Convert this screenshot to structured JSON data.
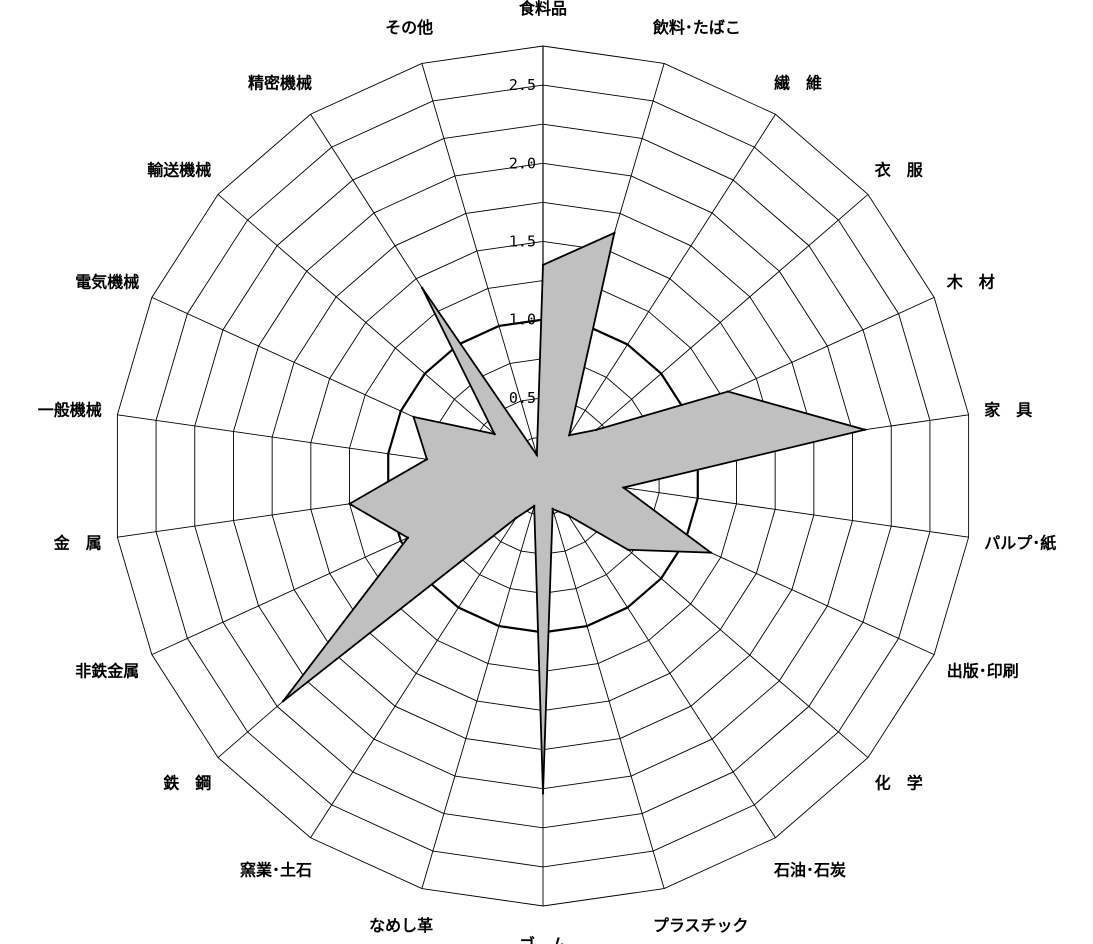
{
  "chart_data": {
    "type": "radar",
    "categories": [
      "食料品",
      "飲料･たばこ",
      "繊　維",
      "衣　服",
      "木　材",
      "家　具",
      "パルプ･紙",
      "出版･印刷",
      "化　学",
      "石油･石炭",
      "プラスチック",
      "ゴ　ム",
      "なめし革",
      "窯業･土石",
      "鉄　鋼",
      "非鉄金属",
      "金　属",
      "一般機械",
      "電気機械",
      "輸送機械",
      "精密機械",
      "その他"
    ],
    "ticks": [
      "0.5",
      "1.0",
      "1.5",
      "2.0",
      "2.5"
    ],
    "tick_values": [
      0.5,
      1.0,
      1.5,
      2.0,
      2.5
    ],
    "grid_rings": [
      0.25,
      0.5,
      0.75,
      1.0,
      1.25,
      1.5,
      1.75,
      2.0,
      2.25,
      2.5,
      2.75
    ],
    "rmax": 2.75,
    "emphasized_ring": 1.0,
    "series": [
      {
        "values": [
          1.35,
          1.62,
          0.31,
          0.45,
          1.3,
          2.08,
          0.52,
          1.18,
          0.72,
          0.3,
          0.22,
          2.03,
          0.2,
          0.32,
          2.2,
          0.95,
          1.25,
          0.75,
          0.91,
          0.41,
          1.43,
          0.14
        ]
      }
    ],
    "colors": {
      "fill": "#c0c0c0",
      "stroke": "#000000",
      "grid": "#000000"
    },
    "grid": true,
    "legend": "none"
  }
}
